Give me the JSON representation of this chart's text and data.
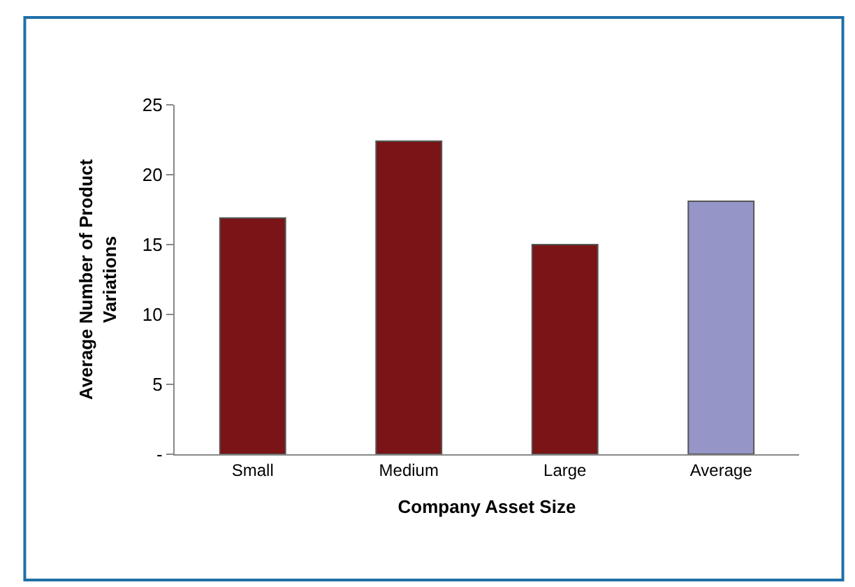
{
  "chart_data": {
    "type": "bar",
    "xlabel": "Company Asset Size",
    "ylabel": "Average Number of Product Variations",
    "categories": [
      "Small",
      "Medium",
      "Large",
      "Average"
    ],
    "values": [
      16.9,
      22.4,
      15.0,
      18.1
    ],
    "colors": [
      "#7a1416",
      "#7a1416",
      "#7a1416",
      "#9595c8"
    ],
    "ylim": [
      0,
      25
    ],
    "yticks": [
      {
        "value": 0,
        "label": "-"
      },
      5,
      10,
      15,
      20,
      25
    ]
  }
}
